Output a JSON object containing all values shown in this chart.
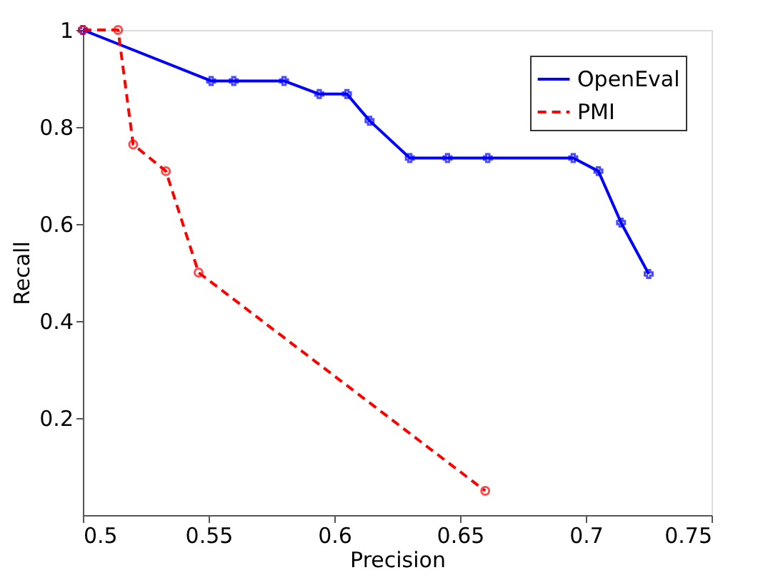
{
  "chart_data": {
    "type": "line",
    "xlabel": "Precision",
    "ylabel": "Recall",
    "xlim": [
      0.5,
      0.75
    ],
    "xticks": [
      0.5,
      0.55,
      0.6,
      0.65,
      0.7,
      0.75
    ],
    "ylim": [
      0,
      1
    ],
    "yticks": [
      0.2,
      0.4,
      0.6,
      0.8,
      1
    ],
    "grid": false,
    "legend": "top right",
    "series": [
      {
        "name": "OpenEval",
        "color": "#0000ff",
        "line_style": "solid",
        "marker": "cross",
        "x": [
          0.5,
          0.551,
          0.56,
          0.58,
          0.594,
          0.605,
          0.614,
          0.63,
          0.645,
          0.661,
          0.695,
          0.705,
          0.714,
          0.725
        ],
        "values": [
          1.0,
          0.895,
          0.895,
          0.895,
          0.868,
          0.868,
          0.813,
          0.736,
          0.736,
          0.736,
          0.736,
          0.709,
          0.603,
          0.497
        ]
      },
      {
        "name": "PMI",
        "color": "#ff0000",
        "line_style": "dashed",
        "marker": "circle",
        "x": [
          0.5,
          0.514,
          0.52,
          0.533,
          0.546,
          0.66
        ],
        "values": [
          1.0,
          1.0,
          0.764,
          0.709,
          0.5,
          0.05
        ]
      }
    ]
  }
}
